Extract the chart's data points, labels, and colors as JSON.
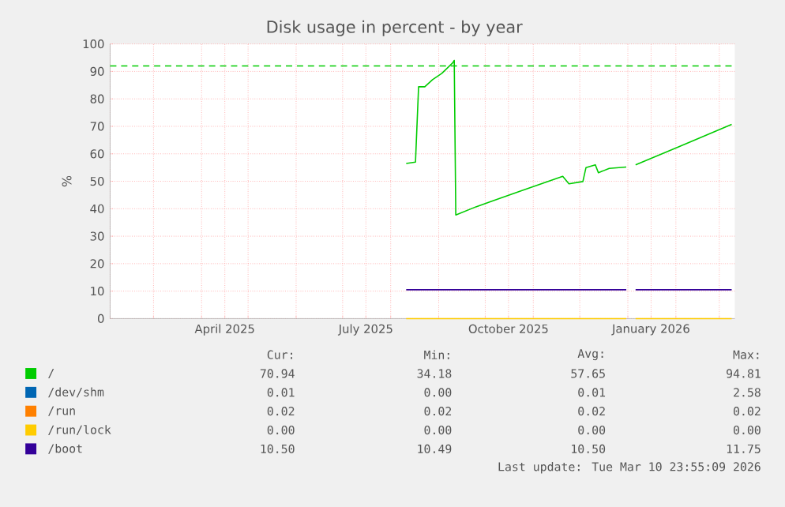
{
  "chart_data": {
    "type": "line",
    "title": "Disk usage in percent - by year",
    "ylabel": "%",
    "xlim": [
      "2025-02-01",
      "2026-03-11"
    ],
    "xticks": [
      {
        "value": "2025-02-01",
        "label": null
      },
      {
        "value": "2025-03-01",
        "label": null
      },
      {
        "value": "2025-04-01",
        "label": null
      },
      {
        "value": "2025-04-16",
        "label": "April 2025"
      },
      {
        "value": "2025-05-01",
        "label": null
      },
      {
        "value": "2025-06-01",
        "label": null
      },
      {
        "value": "2025-07-01",
        "label": null
      },
      {
        "value": "2025-07-16",
        "label": "July 2025"
      },
      {
        "value": "2025-08-01",
        "label": null
      },
      {
        "value": "2025-09-01",
        "label": null
      },
      {
        "value": "2025-10-01",
        "label": null
      },
      {
        "value": "2025-10-16",
        "label": "October 2025"
      },
      {
        "value": "2025-11-01",
        "label": null
      },
      {
        "value": "2025-12-01",
        "label": null
      },
      {
        "value": "2026-01-01",
        "label": null
      },
      {
        "value": "2026-01-16",
        "label": "January 2026"
      },
      {
        "value": "2026-02-01",
        "label": null
      },
      {
        "value": "2026-03-01",
        "label": null
      }
    ],
    "ylim": [
      0,
      100
    ],
    "yticks": [
      0,
      10,
      20,
      30,
      40,
      50,
      60,
      70,
      80,
      90,
      100
    ],
    "grid": true,
    "legend": "bottom",
    "ref_lines": [
      {
        "axis": "y",
        "value": 92,
        "color": "#00cc00",
        "line_style": "dashed"
      }
    ],
    "series": [
      {
        "name": "/",
        "color": "#00cc00",
        "x": [
          "2025-08-11",
          "2025-08-17",
          "2025-08-19",
          "2025-08-23",
          "2025-08-28",
          "2025-09-03",
          "2025-09-10",
          "2025-09-11",
          "2025-09-12",
          "2025-09-25",
          "2025-10-24",
          "2025-11-20",
          "2025-11-24",
          "2025-12-03",
          "2025-12-05",
          "2025-12-11",
          "2025-12-13",
          "2025-12-20",
          "2025-12-31",
          "2026-01-02",
          "2026-01-06",
          "2026-02-03",
          "2026-03-09"
        ],
        "values": [
          56.5,
          57,
          84.4,
          84.4,
          87,
          89.3,
          93.1,
          94,
          37.7,
          40.7,
          46.5,
          51.8,
          49.1,
          49.9,
          55,
          56,
          53.1,
          54.7,
          55.2,
          null,
          56,
          62.6,
          70.7
        ]
      },
      {
        "name": "/dev/shm",
        "color": "#0066b3"
      },
      {
        "name": "/run",
        "color": "#ff8000"
      },
      {
        "name": "/run/lock",
        "color": "#ffcc00",
        "x": [
          "2025-08-11",
          "2025-12-31",
          "2026-01-02",
          "2026-01-06",
          "2026-03-09"
        ],
        "values": [
          0,
          0,
          null,
          0,
          0
        ]
      },
      {
        "name": "/boot",
        "color": "#330099",
        "x": [
          "2025-08-11",
          "2025-12-31",
          "2026-01-02",
          "2026-01-06",
          "2026-03-09"
        ],
        "values": [
          10.5,
          10.5,
          null,
          10.5,
          10.5
        ]
      }
    ],
    "annotations": [
      "Cur:",
      "Min:",
      "Avg:",
      "Max:",
      "70.94",
      "34.18",
      "57.65",
      "94.81",
      "0.01",
      "0.00",
      "0.01",
      "2.58",
      "0.02",
      "0.02",
      "0.02",
      "0.02",
      "0.00",
      "0.00",
      "0.00",
      "0.00",
      "10.50",
      "10.49",
      "10.50",
      "11.75",
      "Last update: Tue Mar 10 23:55:09 2026"
    ]
  }
}
